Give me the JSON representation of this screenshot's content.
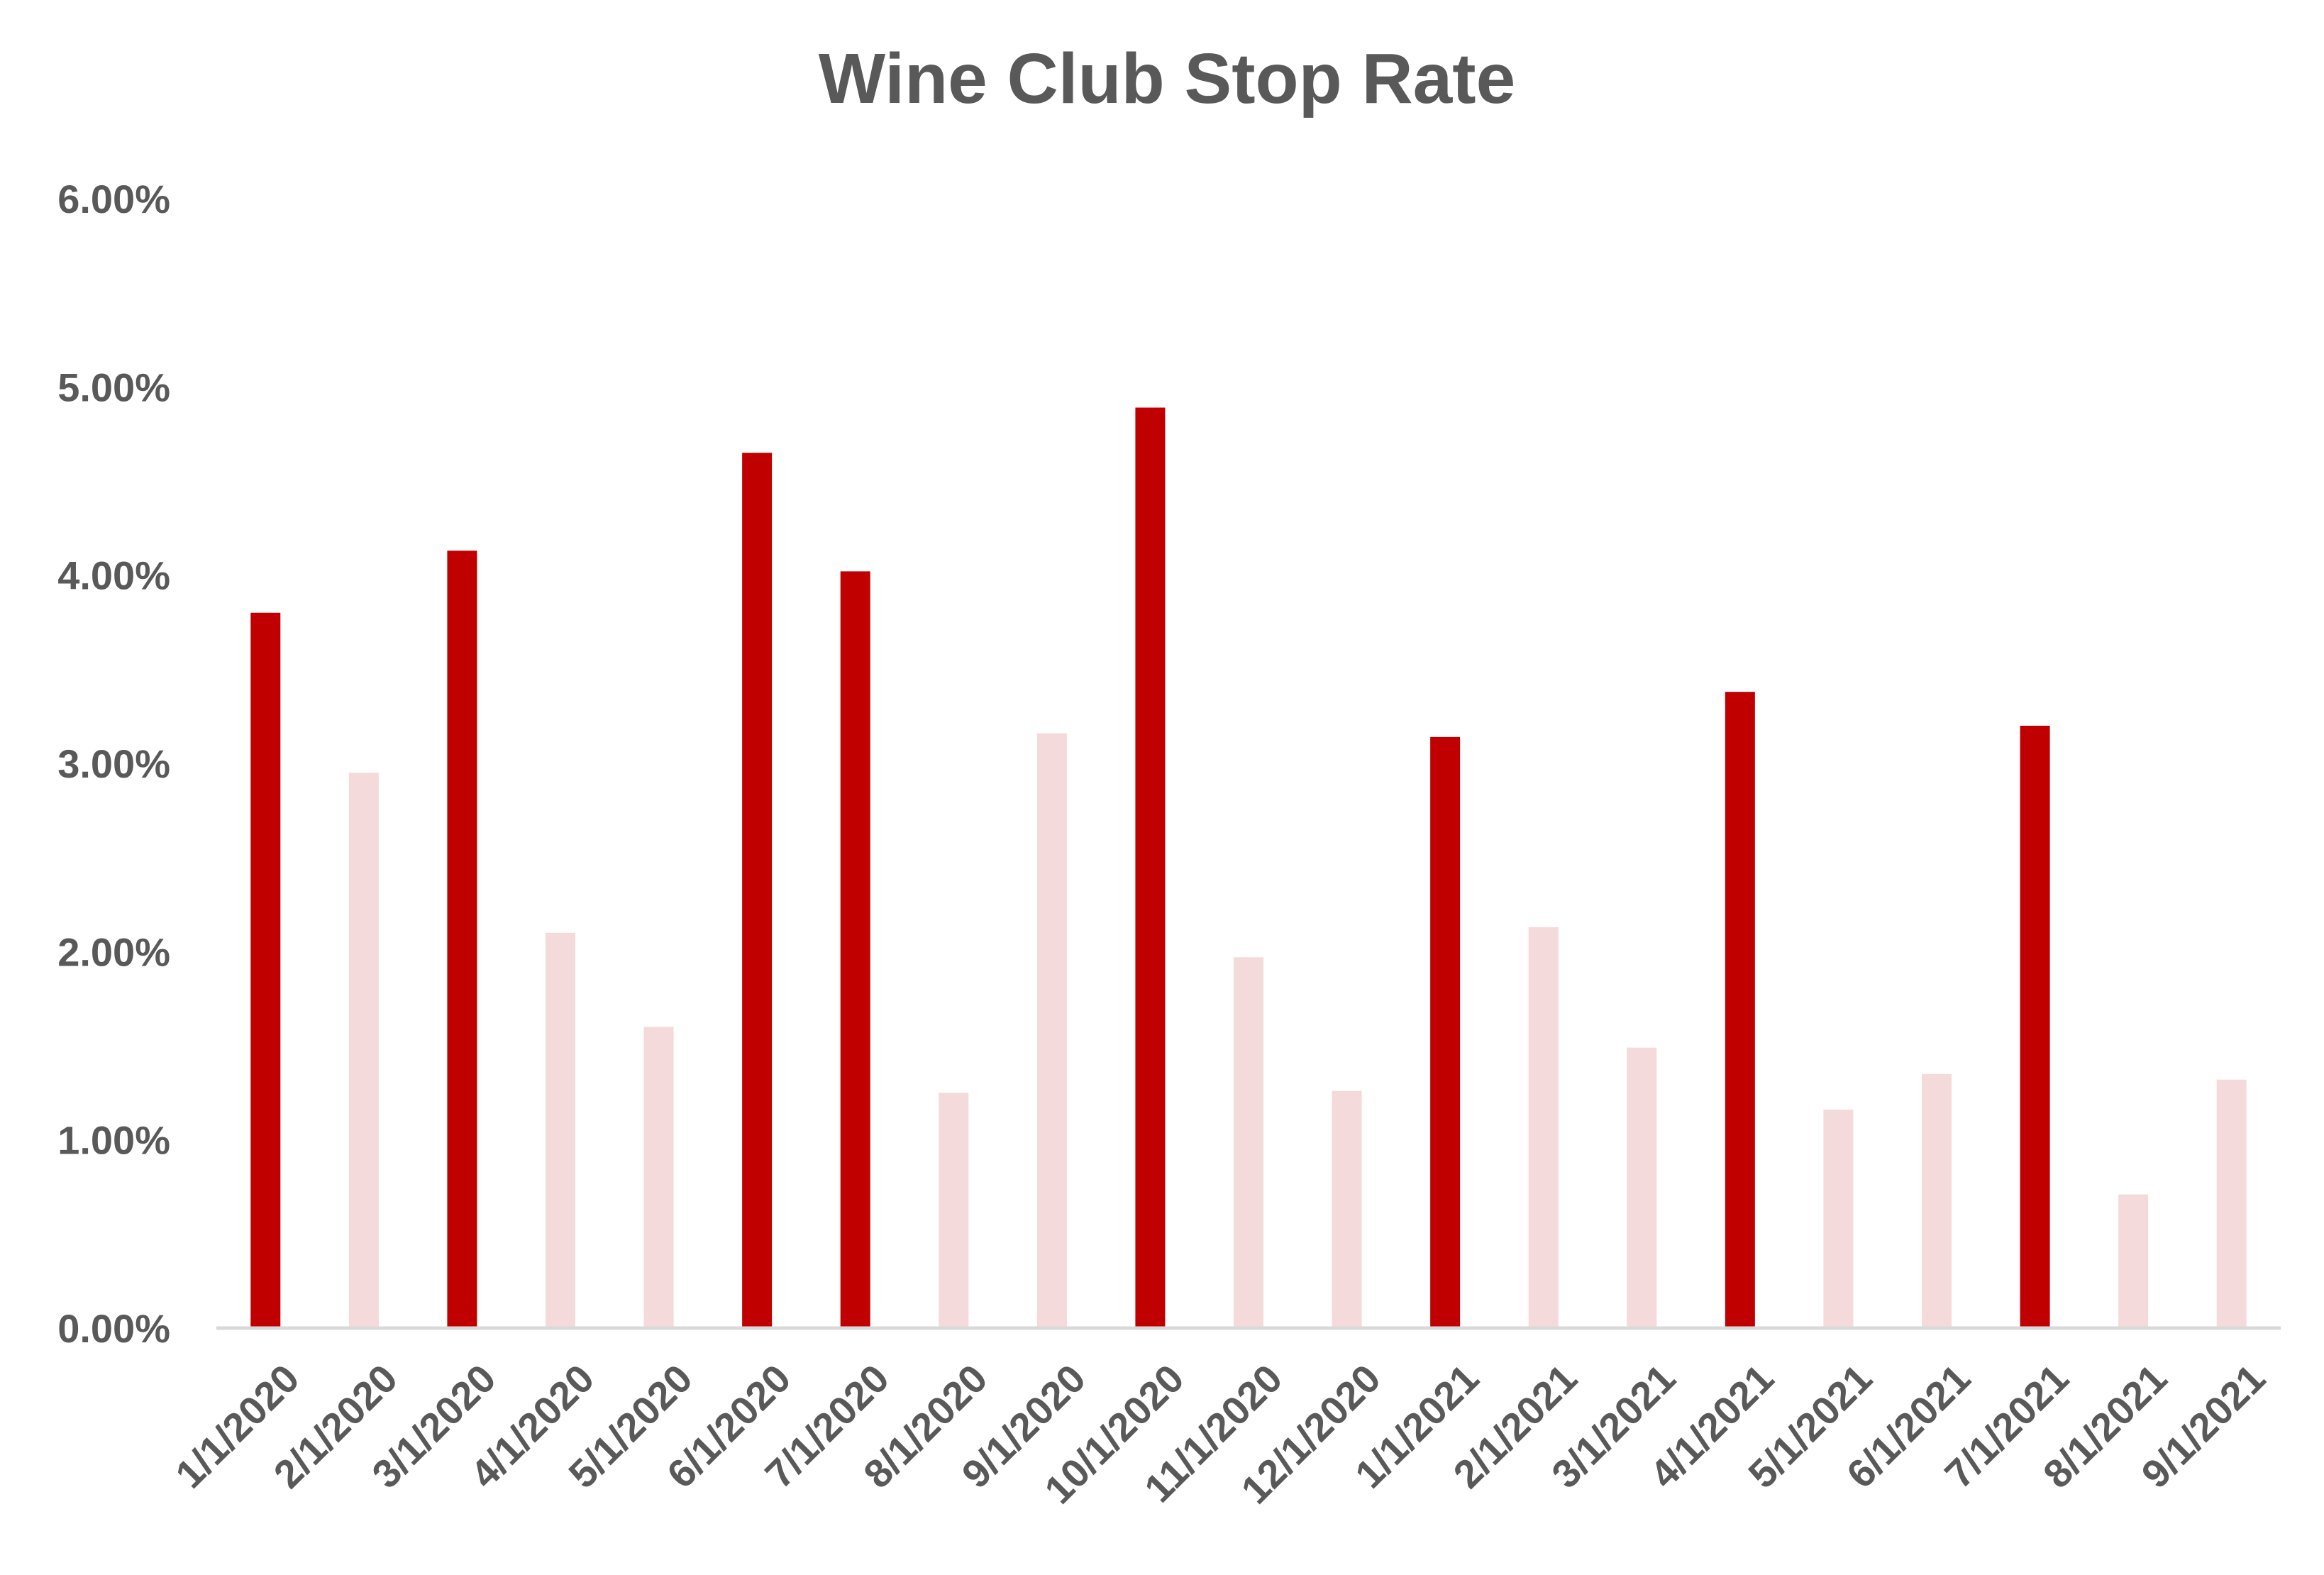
{
  "chart_data": {
    "type": "bar",
    "title": "Wine Club Stop Rate",
    "xlabel": "",
    "ylabel": "",
    "ylim": [
      0,
      0.06
    ],
    "y_tick_values": [
      0,
      0.01,
      0.02,
      0.03,
      0.04,
      0.05,
      0.06
    ],
    "y_tick_labels": [
      "0.00%",
      "1.00%",
      "2.00%",
      "3.00%",
      "4.00%",
      "5.00%",
      "6.00%"
    ],
    "grid": false,
    "legend": "none",
    "categories": [
      "1/1/2020",
      "2/1/2020",
      "3/1/2020",
      "4/1/2020",
      "5/1/2020",
      "6/1/2020",
      "7/1/2020",
      "8/1/2020",
      "9/1/2020",
      "10/1/2020",
      "11/1/2020",
      "12/1/2020",
      "1/1/2021",
      "2/1/2021",
      "3/1/2021",
      "4/1/2021",
      "5/1/2021",
      "6/1/2021",
      "7/1/2021",
      "8/1/2021",
      "9/1/2021"
    ],
    "values": [
      0.038,
      0.0295,
      0.0413,
      0.021,
      0.016,
      0.0465,
      0.0402,
      0.0125,
      0.0316,
      0.0489,
      0.0197,
      0.0126,
      0.0314,
      0.0213,
      0.0149,
      0.0338,
      0.0116,
      0.0135,
      0.032,
      0.0071,
      0.0132
    ],
    "highlighted": [
      true,
      false,
      true,
      false,
      false,
      true,
      true,
      false,
      false,
      true,
      false,
      false,
      true,
      false,
      false,
      true,
      false,
      false,
      true,
      false,
      false
    ],
    "colors": {
      "highlight": "#C00000",
      "normal": "#F4DADA",
      "text": "#595959",
      "axis_line": "#D9D9D9"
    }
  }
}
